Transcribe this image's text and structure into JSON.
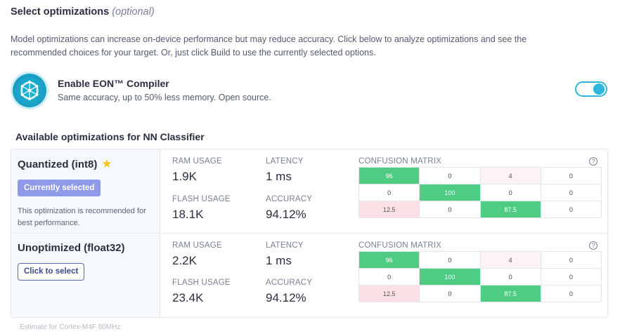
{
  "header": {
    "title": "Select optimizations",
    "optional": "(optional)",
    "description": "Model optimizations can increase on-device performance but may reduce accuracy. Click below to analyze optimizations and see the recommended choices for your target. Or, just click Build to use the currently selected options."
  },
  "eon": {
    "title": "Enable EON™ Compiler",
    "subtitle": "Same accuracy, up to 50% less memory. Open source.",
    "enabled": true,
    "accent": "#2db6d9"
  },
  "available_title": "Available optimizations for NN Classifier",
  "labels": {
    "ram": "RAM USAGE",
    "latency": "LATENCY",
    "flash": "FLASH USAGE",
    "accuracy": "ACCURACY",
    "confusion": "CONFUSION MATRIX",
    "help": "?"
  },
  "options": [
    {
      "name": "Quantized (int8)",
      "starred": true,
      "status_label": "Currently selected",
      "recommendation": "This optimization is recommended for best performance.",
      "ram": "1.9K",
      "latency": "1 ms",
      "flash": "18.1K",
      "accuracy": "94.12%",
      "matrix": [
        [
          "96",
          "0",
          "4",
          "0"
        ],
        [
          "0",
          "100",
          "0",
          "0"
        ],
        [
          "12.5",
          "0",
          "87.5",
          "0"
        ]
      ]
    },
    {
      "name": "Unoptimized (float32)",
      "starred": false,
      "button_label": "Click to select",
      "ram": "2.2K",
      "latency": "1 ms",
      "flash": "23.4K",
      "accuracy": "94.12%",
      "matrix": [
        [
          "96",
          "0",
          "4",
          "0"
        ],
        [
          "0",
          "100",
          "0",
          "0"
        ],
        [
          "12.5",
          "0",
          "87.5",
          "0"
        ]
      ]
    }
  ],
  "footer": "Estimate for Cortex-M4F 80MHz",
  "colors": {
    "matrix_green": "#4ecc84",
    "matrix_red": "#fae1e5",
    "selected_badge": "#8f9ae8"
  }
}
